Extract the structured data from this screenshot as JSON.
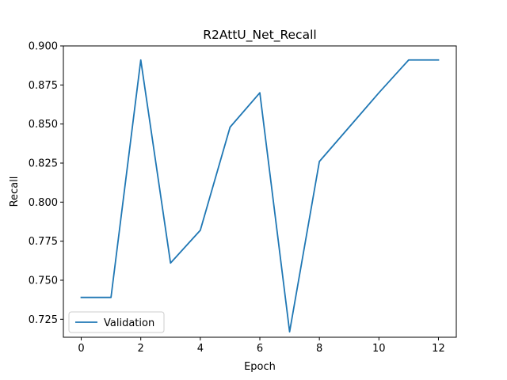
{
  "chart_data": {
    "type": "line",
    "title": "R2AttU_Net_Recall",
    "xlabel": "Epoch",
    "ylabel": "Recall",
    "xlim": [
      -0.6,
      12.6
    ],
    "ylim": [
      0.7135,
      0.9
    ],
    "xticks": [
      0,
      2,
      4,
      6,
      8,
      10,
      12
    ],
    "xtick_labels": [
      "0",
      "2",
      "4",
      "6",
      "8",
      "10",
      "12"
    ],
    "yticks": [
      0.725,
      0.75,
      0.775,
      0.8,
      0.825,
      0.85,
      0.875,
      0.9
    ],
    "ytick_labels": [
      "0.725",
      "0.750",
      "0.775",
      "0.800",
      "0.825",
      "0.850",
      "0.875",
      "0.900"
    ],
    "grid": false,
    "legend_position": "lower-left",
    "series": [
      {
        "name": "Validation",
        "color": "#1f77b4",
        "x": [
          0,
          1,
          2,
          3,
          4,
          5,
          6,
          7,
          8,
          9,
          10,
          11,
          12
        ],
        "values": [
          0.739,
          0.739,
          0.891,
          0.761,
          0.782,
          0.848,
          0.87,
          0.717,
          0.826,
          0.848,
          0.87,
          0.891,
          0.891
        ]
      }
    ]
  }
}
